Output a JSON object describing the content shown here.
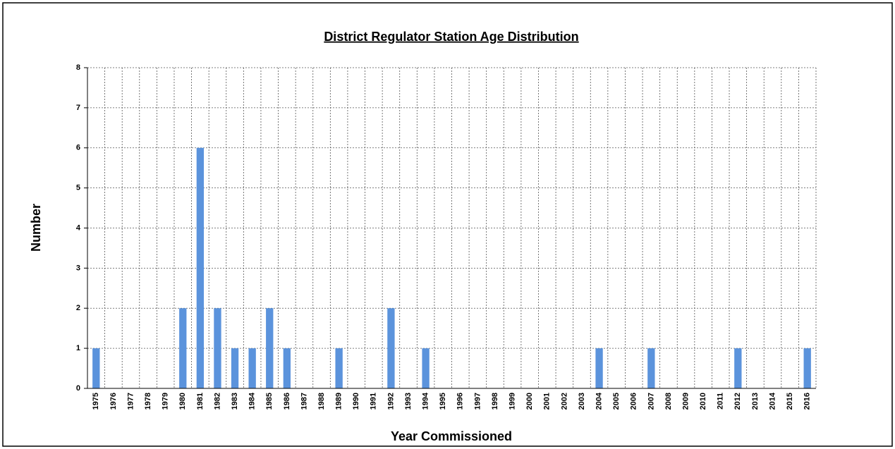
{
  "chart_data": {
    "type": "bar",
    "title": "District Regulator Station Age Distribution",
    "x_label": "Year Commissioned",
    "y_label": "Number",
    "categories": [
      "1975",
      "1976",
      "1977",
      "1978",
      "1979",
      "1980",
      "1981",
      "1982",
      "1983",
      "1984",
      "1985",
      "1986",
      "1987",
      "1988",
      "1989",
      "1990",
      "1991",
      "1992",
      "1993",
      "1994",
      "1995",
      "1996",
      "1997",
      "1998",
      "1999",
      "2000",
      "2001",
      "2002",
      "2003",
      "2004",
      "2005",
      "2006",
      "2007",
      "2008",
      "2009",
      "2010",
      "2011",
      "2012",
      "2013",
      "2014",
      "2015",
      "2016"
    ],
    "values": [
      1,
      0,
      0,
      0,
      0,
      2,
      6,
      2,
      1,
      1,
      2,
      1,
      0,
      0,
      1,
      0,
      0,
      2,
      0,
      1,
      0,
      0,
      0,
      0,
      0,
      0,
      0,
      0,
      0,
      1,
      0,
      0,
      1,
      0,
      0,
      0,
      0,
      1,
      0,
      0,
      0,
      1
    ],
    "color": "#5b93dc",
    "ylim": [
      0,
      8
    ],
    "yticks": [
      0,
      1,
      2,
      3,
      4,
      5,
      6,
      7,
      8
    ],
    "grid": true
  }
}
